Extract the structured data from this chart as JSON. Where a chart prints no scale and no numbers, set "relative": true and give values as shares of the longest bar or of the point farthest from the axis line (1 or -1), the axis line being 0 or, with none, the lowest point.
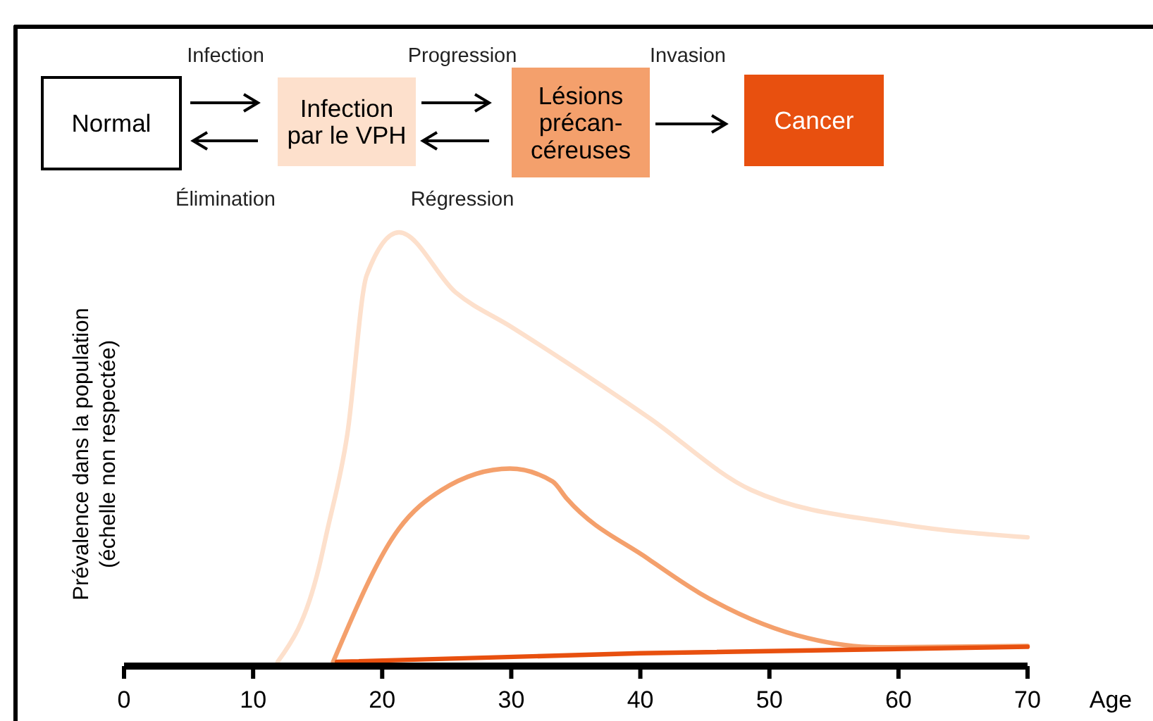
{
  "chart_data": {
    "type": "line",
    "relative": true,
    "xlabel": "Age",
    "ylabel": "Prévalence dans la population\n(échelle non respectée)",
    "xlim": [
      0,
      70
    ],
    "xticks": [
      0,
      10,
      20,
      30,
      40,
      50,
      60,
      70
    ],
    "grid": false,
    "marker": "none",
    "line_style": "solid",
    "annotations": [
      "Normal",
      "Infection\npar le VPH",
      "Lésions\nprécan-\ncéreuses",
      "Cancer",
      "Infection",
      "Progression",
      "Invasion",
      "Élimination",
      "Régression"
    ],
    "series": [
      {
        "color": "#fde0cc",
        "x": [
          11.9,
          15.1,
          15.7,
          17.3,
          18.8,
          21.3,
          25.7,
          30.0,
          40.6,
          48.6,
          60.3,
          70
        ],
        "values": [
          0,
          0.22,
          0.3,
          0.53,
          0.9,
          1,
          0.86,
          0.78,
          0.57,
          0.4,
          0.32,
          0.29
        ]
      },
      {
        "color": "#f4a06c",
        "x": [
          16.2,
          21.3,
          24.6,
          29.9,
          33.2,
          34.3,
          40.6,
          44.6,
          53.0,
          58.4,
          70
        ],
        "values": [
          0,
          0.31,
          0.4,
          0.45,
          0.42,
          0.38,
          0.24,
          0.16,
          0.055,
          0.034,
          0.037
        ]
      },
      {
        "color": "#e8500f",
        "x": [
          16.5,
          40,
          70
        ],
        "values": [
          0,
          0.02,
          0.035
        ]
      }
    ]
  }
}
